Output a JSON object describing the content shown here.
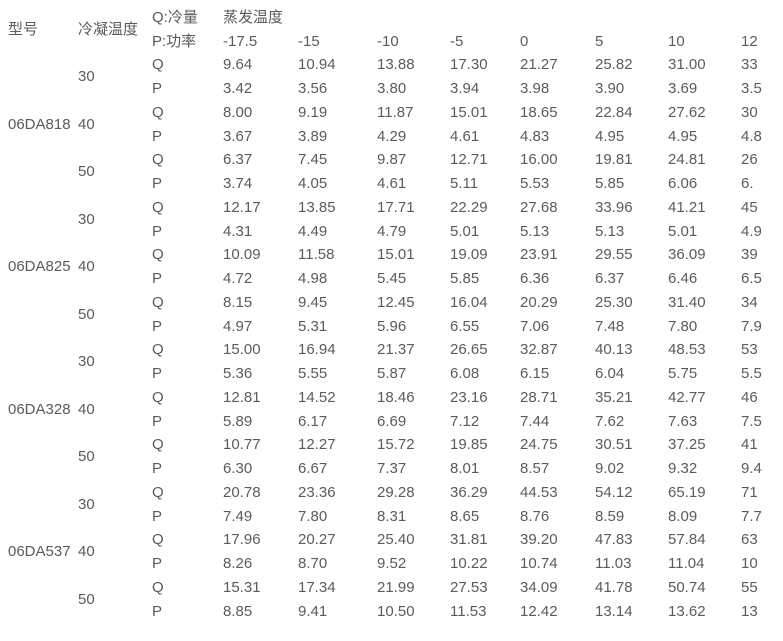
{
  "colors": {
    "background": "#ffffff",
    "text": "#5b5b5b"
  },
  "table": {
    "header": {
      "model": "型号",
      "cond_temp": "冷凝温度",
      "q_label": "Q:冷量",
      "p_label": "P:功率",
      "evap_temp": "蒸发温度",
      "temps": [
        "-17.5",
        "-15",
        "-10",
        "-5",
        "0",
        "5",
        "10",
        "12"
      ]
    },
    "row_labels": [
      "Q",
      "P"
    ],
    "models": [
      {
        "name": "06DA818",
        "groups": [
          {
            "cond": "30",
            "q": [
              "9.64",
              "10.94",
              "13.88",
              "17.30",
              "21.27",
              "25.82",
              "31.00",
              "33"
            ],
            "p": [
              "3.42",
              "3.56",
              "3.80",
              "3.94",
              "3.98",
              "3.90",
              "3.69",
              "3.5"
            ]
          },
          {
            "cond": "40",
            "q": [
              "8.00",
              "9.19",
              "11.87",
              "15.01",
              "18.65",
              "22.84",
              "27.62",
              "30"
            ],
            "p": [
              "3.67",
              "3.89",
              "4.29",
              "4.61",
              "4.83",
              "4.95",
              "4.95",
              "4.8"
            ]
          },
          {
            "cond": "50",
            "q": [
              "6.37",
              "7.45",
              "9.87",
              "12.71",
              "16.00",
              "19.81",
              "24.81",
              "26"
            ],
            "p": [
              "3.74",
              "4.05",
              "4.61",
              "5.11",
              "5.53",
              "5.85",
              "6.06",
              "6."
            ]
          }
        ]
      },
      {
        "name": "06DA825",
        "groups": [
          {
            "cond": "30",
            "q": [
              "12.17",
              "13.85",
              "17.71",
              "22.29",
              "27.68",
              "33.96",
              "41.21",
              "45"
            ],
            "p": [
              "4.31",
              "4.49",
              "4.79",
              "5.01",
              "5.13",
              "5.13",
              "5.01",
              "4.9"
            ]
          },
          {
            "cond": "40",
            "q": [
              "10.09",
              "11.58",
              "15.01",
              "19.09",
              "23.91",
              "29.55",
              "36.09",
              "39"
            ],
            "p": [
              "4.72",
              "4.98",
              "5.45",
              "5.85",
              "6.36",
              "6.37",
              "6.46",
              "6.5"
            ]
          },
          {
            "cond": "50",
            "q": [
              "8.15",
              "9.45",
              "12.45",
              "16.04",
              "20.29",
              "25.30",
              "31.40",
              "34"
            ],
            "p": [
              "4.97",
              "5.31",
              "5.96",
              "6.55",
              "7.06",
              "7.48",
              "7.80",
              "7.9"
            ]
          }
        ]
      },
      {
        "name": "06DA328",
        "groups": [
          {
            "cond": "30",
            "q": [
              "15.00",
              "16.94",
              "21.37",
              "26.65",
              "32.87",
              "40.13",
              "48.53",
              "53"
            ],
            "p": [
              "5.36",
              "5.55",
              "5.87",
              "6.08",
              "6.15",
              "6.04",
              "5.75",
              "5.5"
            ]
          },
          {
            "cond": "40",
            "q": [
              "12.81",
              "14.52",
              "18.46",
              "23.16",
              "28.71",
              "35.21",
              "42.77",
              "46"
            ],
            "p": [
              "5.89",
              "6.17",
              "6.69",
              "7.12",
              "7.44",
              "7.62",
              "7.63",
              "7.5"
            ]
          },
          {
            "cond": "50",
            "q": [
              "10.77",
              "12.27",
              "15.72",
              "19.85",
              "24.75",
              "30.51",
              "37.25",
              "41"
            ],
            "p": [
              "6.30",
              "6.67",
              "7.37",
              "8.01",
              "8.57",
              "9.02",
              "9.32",
              "9.4"
            ]
          }
        ]
      },
      {
        "name": "06DA537",
        "groups": [
          {
            "cond": "30",
            "q": [
              "20.78",
              "23.36",
              "29.28",
              "36.29",
              "44.53",
              "54.12",
              "65.19",
              "71"
            ],
            "p": [
              "7.49",
              "7.80",
              "8.31",
              "8.65",
              "8.76",
              "8.59",
              "8.09",
              "7.7"
            ]
          },
          {
            "cond": "40",
            "q": [
              "17.96",
              "20.27",
              "25.40",
              "31.81",
              "39.20",
              "47.83",
              "57.84",
              "63"
            ],
            "p": [
              "8.26",
              "8.70",
              "9.52",
              "10.22",
              "10.74",
              "11.03",
              "11.04",
              "10"
            ]
          },
          {
            "cond": "50",
            "q": [
              "15.31",
              "17.34",
              "21.99",
              "27.53",
              "34.09",
              "41.78",
              "50.74",
              "55"
            ],
            "p": [
              "8.85",
              "9.41",
              "10.50",
              "11.53",
              "12.42",
              "13.14",
              "13.62",
              "13"
            ]
          }
        ]
      }
    ]
  }
}
